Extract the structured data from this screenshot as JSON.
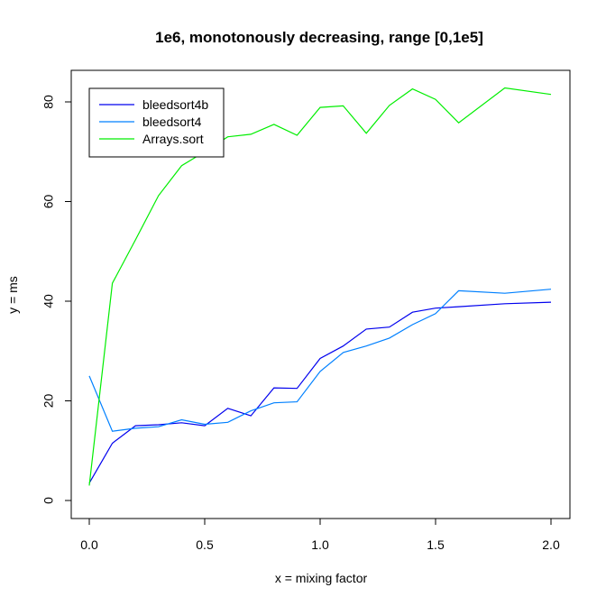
{
  "chart_data": {
    "type": "line",
    "title": "1e6, monotonously decreasing, range [0,1e5]",
    "xlabel": "x = mixing factor",
    "ylabel": "y = ms",
    "xlim": [
      0,
      2
    ],
    "ylim": [
      0,
      85
    ],
    "xticks": [
      {
        "value": 0,
        "label": "0.0"
      },
      {
        "value": 0.5,
        "label": "0.5"
      },
      {
        "value": 1,
        "label": "1.0"
      },
      {
        "value": 1.5,
        "label": "1.5"
      },
      {
        "value": 2,
        "label": "2.0"
      }
    ],
    "yticks": [
      {
        "value": 0,
        "label": "0"
      },
      {
        "value": 20,
        "label": "20"
      },
      {
        "value": 40,
        "label": "40"
      },
      {
        "value": 60,
        "label": "60"
      },
      {
        "value": 80,
        "label": "80"
      }
    ],
    "grid": false,
    "legend_position": "top-left",
    "x": [
      0,
      0.1,
      0.2,
      0.3,
      0.4,
      0.5,
      0.6,
      0.7,
      0.8,
      0.9,
      1.0,
      1.1,
      1.2,
      1.3,
      1.4,
      1.5,
      1.6,
      1.8,
      2.0
    ],
    "series": [
      {
        "name": "bleedsort4b",
        "color": "#0000ee",
        "values": [
          3.5,
          11.5,
          15.0,
          15.2,
          15.6,
          15.0,
          18.5,
          17.0,
          22.6,
          22.5,
          28.5,
          31.0,
          34.4,
          34.8,
          37.8,
          38.6,
          38.9,
          39.5,
          39.8
        ]
      },
      {
        "name": "bleedsort4",
        "color": "#0080ff",
        "values": [
          25.0,
          13.9,
          14.5,
          14.8,
          16.2,
          15.3,
          15.7,
          18.0,
          19.6,
          19.8,
          25.9,
          29.7,
          31.0,
          32.6,
          35.3,
          37.5,
          42.1,
          41.6,
          42.4
        ]
      },
      {
        "name": "Arrays.sort",
        "color": "#00ee00",
        "values": [
          3.0,
          43.6,
          52.3,
          61.2,
          67.2,
          70.0,
          73.0,
          73.5,
          75.5,
          73.3,
          78.9,
          79.2,
          73.7,
          79.3,
          82.6,
          80.5,
          75.8,
          82.8,
          81.5
        ]
      }
    ]
  }
}
